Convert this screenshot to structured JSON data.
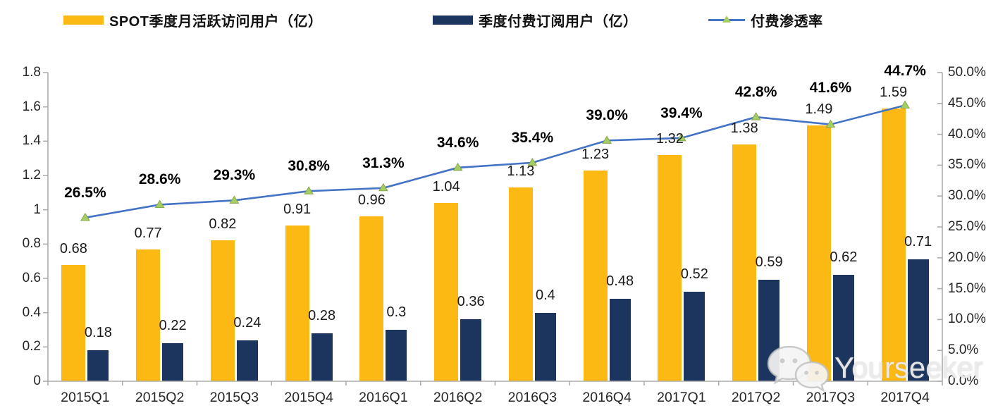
{
  "legend": {
    "items": [
      {
        "label": "SPOT季度月活跃访问用户（亿）",
        "swatch": "bar",
        "color": "#FDB913"
      },
      {
        "label": "季度付费订阅用户（亿）",
        "swatch": "bar",
        "color": "#1C355E"
      },
      {
        "label": "付费渗透率",
        "swatch": "line",
        "color": "#4472C4",
        "marker_color": "#A5CE62"
      }
    ]
  },
  "chart_data": {
    "type": "combo",
    "categories": [
      "2015Q1",
      "2015Q2",
      "2015Q3",
      "2015Q4",
      "2016Q1",
      "2016Q2",
      "2016Q3",
      "2016Q4",
      "2017Q1",
      "2017Q2",
      "2017Q3",
      "2017Q4"
    ],
    "series": [
      {
        "name": "SPOT季度月活跃访问用户（亿）",
        "type": "bar",
        "color": "#FDB913",
        "values": [
          0.68,
          0.77,
          0.82,
          0.91,
          0.96,
          1.04,
          1.13,
          1.23,
          1.32,
          1.38,
          1.49,
          1.59
        ],
        "labels": [
          "0.68",
          "0.77",
          "0.82",
          "0.91",
          "0.96",
          "1.04",
          "1.13",
          "1.23",
          "1.32",
          "1.38",
          "1.49",
          "1.59"
        ]
      },
      {
        "name": "季度付费订阅用户（亿）",
        "type": "bar",
        "color": "#1C355E",
        "values": [
          0.18,
          0.22,
          0.24,
          0.28,
          0.3,
          0.36,
          0.4,
          0.48,
          0.52,
          0.59,
          0.62,
          0.71
        ],
        "labels": [
          "0.18",
          "0.22",
          "0.24",
          "0.28",
          "0.3",
          "0.36",
          "0.4",
          "0.48",
          "0.52",
          "0.59",
          "0.62",
          "0.71"
        ]
      },
      {
        "name": "付费渗透率",
        "type": "line",
        "axis": "right",
        "color": "#4472C4",
        "marker": "triangle",
        "marker_color": "#A5CE62",
        "marker_stroke": "#86A84F",
        "values": [
          26.5,
          28.6,
          29.3,
          30.8,
          31.3,
          34.6,
          35.4,
          39.0,
          39.4,
          42.8,
          41.6,
          44.7
        ],
        "labels": [
          "26.5%",
          "28.6%",
          "29.3%",
          "30.8%",
          "31.3%",
          "34.6%",
          "35.4%",
          "39.0%",
          "39.4%",
          "42.8%",
          "41.6%",
          "44.7%"
        ]
      }
    ],
    "left_axis": {
      "min": 0,
      "max": 1.8,
      "tick_labels": [
        "1.8",
        "1.6",
        "1.4",
        "1.2",
        "1",
        "0.8",
        "0.6",
        "0.4",
        "0.2",
        "0"
      ]
    },
    "right_axis": {
      "min": 0,
      "max": 50,
      "tick_labels": [
        "50.0%",
        "45.0%",
        "40.0%",
        "35.0%",
        "30.0%",
        "25.0%",
        "20.0%",
        "15.0%",
        "10.0%",
        "5.0%",
        "0.0%"
      ]
    },
    "legend_position": "top",
    "grid": false,
    "axis_color": "#ADADAD"
  },
  "watermark": {
    "text": "Yourseeker",
    "icon": "wechat-chat-bubbles"
  }
}
